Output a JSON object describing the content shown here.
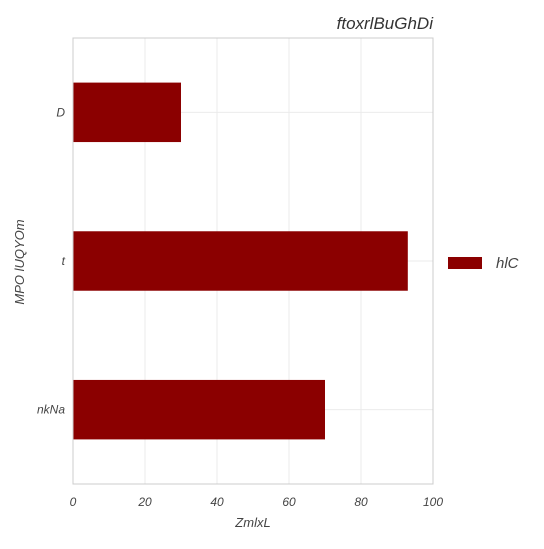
{
  "chart_data": {
    "type": "bar",
    "orientation": "horizontal",
    "title": "ftoxrlBuGhDi",
    "xlabel": "ZmlxL",
    "ylabel": "MPO lUQYOm",
    "categories": [
      "D",
      "t",
      "nkNa"
    ],
    "series": [
      {
        "name": "hlC",
        "values": [
          30,
          93,
          70
        ],
        "color": "#8b0000"
      }
    ],
    "xlim": [
      0,
      100
    ],
    "xticks": [
      0,
      20,
      40,
      60,
      80,
      100
    ],
    "xtick_labels": [
      "0",
      "20",
      "40",
      "60",
      "80",
      "100"
    ],
    "grid": true,
    "legend_position": "right"
  },
  "colors": {
    "grid": "#ebebeb",
    "frame": "#cccccc",
    "text": "#444444",
    "title": "#333333"
  }
}
